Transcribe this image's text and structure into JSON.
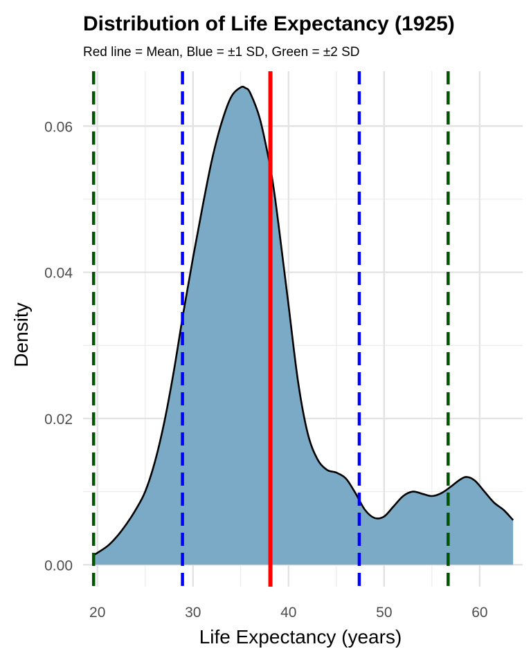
{
  "chart_data": {
    "type": "area",
    "title": "Distribution of Life Expectancy (1925)",
    "subtitle": "Red line = Mean, Blue = ±1 SD, Green = ±2 SD",
    "xlabel": "Life Expectancy (years)",
    "ylabel": "Density",
    "xlim": [
      18.5,
      64.5
    ],
    "ylim": [
      -0.003,
      0.0675
    ],
    "x_ticks": [
      20,
      30,
      40,
      50,
      60
    ],
    "x_tick_labels": [
      "20",
      "30",
      "40",
      "50",
      "60"
    ],
    "y_ticks": [
      0.0,
      0.02,
      0.04,
      0.06
    ],
    "y_tick_labels": [
      "0.00",
      "0.02",
      "0.04",
      "0.06"
    ],
    "x_minor_ticks": [
      25,
      35,
      45,
      55
    ],
    "y_minor_ticks": [
      0.01,
      0.03,
      0.05
    ],
    "grid": true,
    "series": [
      {
        "name": "density",
        "fill": "#7aaac6",
        "stroke": "#000000",
        "x": [
          19.6,
          21,
          22,
          23,
          24,
          25,
          26,
          27,
          28,
          29,
          30,
          31,
          32,
          33,
          34,
          35,
          35.5,
          36,
          37,
          38,
          38.5,
          39,
          40,
          41,
          42,
          43,
          44,
          45,
          46,
          47,
          48,
          49,
          50,
          51,
          52,
          53,
          54,
          55,
          56,
          57,
          58,
          58.7,
          59.5,
          60.5,
          61.5,
          62.5,
          63.5
        ],
        "y": [
          0.0013,
          0.0025,
          0.0038,
          0.0055,
          0.0075,
          0.01,
          0.014,
          0.0195,
          0.0265,
          0.0345,
          0.042,
          0.049,
          0.0555,
          0.0605,
          0.064,
          0.0653,
          0.0652,
          0.0645,
          0.061,
          0.055,
          0.051,
          0.046,
          0.0355,
          0.025,
          0.018,
          0.0145,
          0.013,
          0.0126,
          0.0118,
          0.0098,
          0.0075,
          0.0064,
          0.0066,
          0.008,
          0.0094,
          0.01,
          0.0097,
          0.0094,
          0.0098,
          0.0107,
          0.0117,
          0.012,
          0.0115,
          0.01,
          0.0085,
          0.0075,
          0.0061
        ]
      }
    ],
    "reference_lines": [
      {
        "name": "mean",
        "x": 38.1,
        "color": "#ff0000",
        "style": "solid"
      },
      {
        "name": "minus-1-sd",
        "x": 28.9,
        "color": "#0000ff",
        "style": "dashed"
      },
      {
        "name": "plus-1-sd",
        "x": 47.4,
        "color": "#0000ff",
        "style": "dashed"
      },
      {
        "name": "minus-2-sd",
        "x": 19.6,
        "color": "#005500",
        "style": "dashed"
      },
      {
        "name": "plus-2-sd",
        "x": 56.7,
        "color": "#005500",
        "style": "dashed"
      }
    ]
  }
}
